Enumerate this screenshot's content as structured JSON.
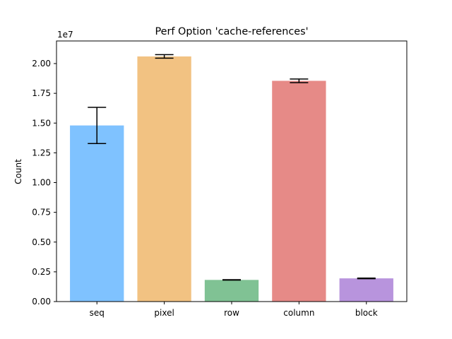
{
  "chart_data": {
    "type": "bar",
    "title": "Perf Option 'cache-references'",
    "xlabel": "",
    "ylabel": "Count",
    "offset_label": "1e7",
    "categories": [
      "seq",
      "pixel",
      "row",
      "column",
      "block"
    ],
    "values": [
      14800000,
      20600000,
      1820000,
      18550000,
      1950000
    ],
    "errors": [
      1520000,
      150000,
      20000,
      150000,
      25000
    ],
    "colors": [
      "#7fc2ff",
      "#f2c282",
      "#80c294",
      "#e68a87",
      "#b894dd"
    ],
    "ylim": [
      0,
      21900000
    ],
    "yticks": [
      0,
      2500000,
      5000000,
      7500000,
      10000000,
      12500000,
      15000000,
      17500000,
      20000000
    ],
    "ytick_labels": [
      "0.00",
      "0.25",
      "0.50",
      "0.75",
      "1.00",
      "1.25",
      "1.50",
      "1.75",
      "2.00"
    ],
    "grid": false,
    "legend": "none"
  }
}
